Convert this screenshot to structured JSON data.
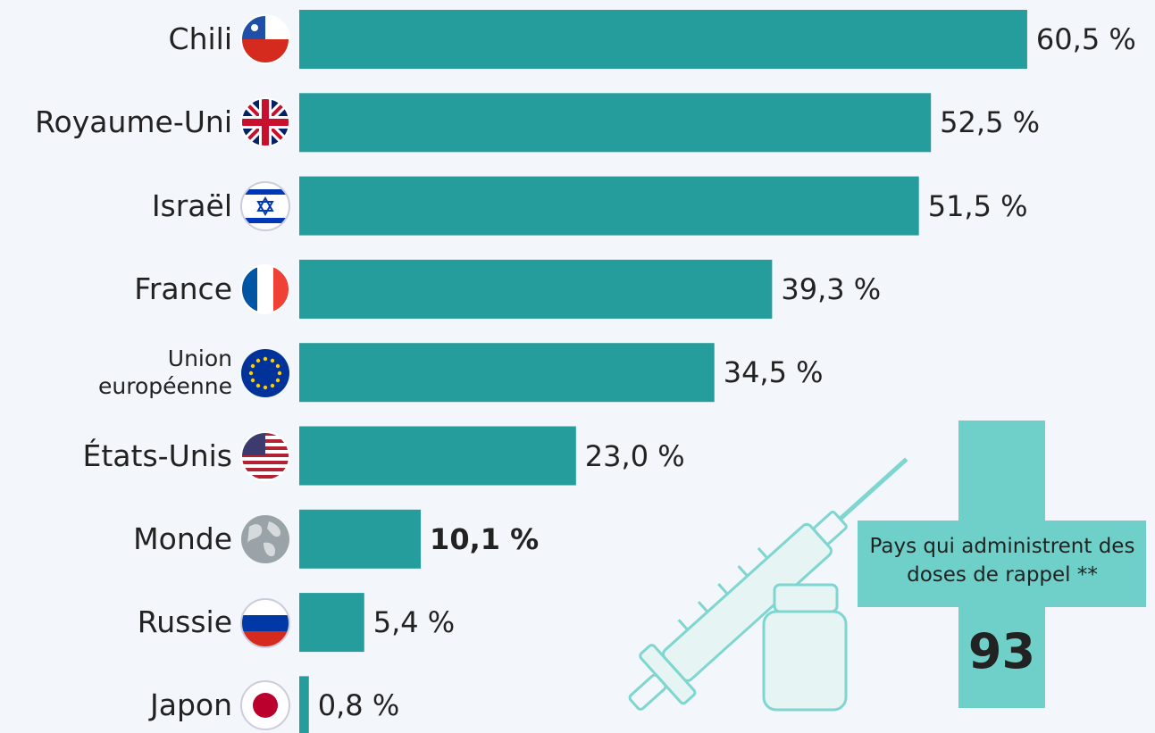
{
  "chart_data": {
    "type": "bar",
    "orientation": "horizontal",
    "categories": [
      "Chili",
      "Royaume-Uni",
      "Israël",
      "France",
      "Union européenne",
      "États-Unis",
      "Monde",
      "Russie",
      "Japon"
    ],
    "values": [
      60.5,
      52.5,
      51.5,
      39.3,
      34.5,
      23.0,
      10.1,
      5.4,
      0.8
    ],
    "value_labels": [
      "60,5 %",
      "52,5 %",
      "51,5 %",
      "39,3 %",
      "34,5 %",
      "23,0 %",
      "10,1 %",
      "5,4 %",
      "0,8 %"
    ],
    "color": "#259d9c",
    "bold_index": 6,
    "callout": {
      "text": "Pays qui administrent des doses de rappel **",
      "value": 93,
      "color": "#6fd0c9"
    }
  }
}
